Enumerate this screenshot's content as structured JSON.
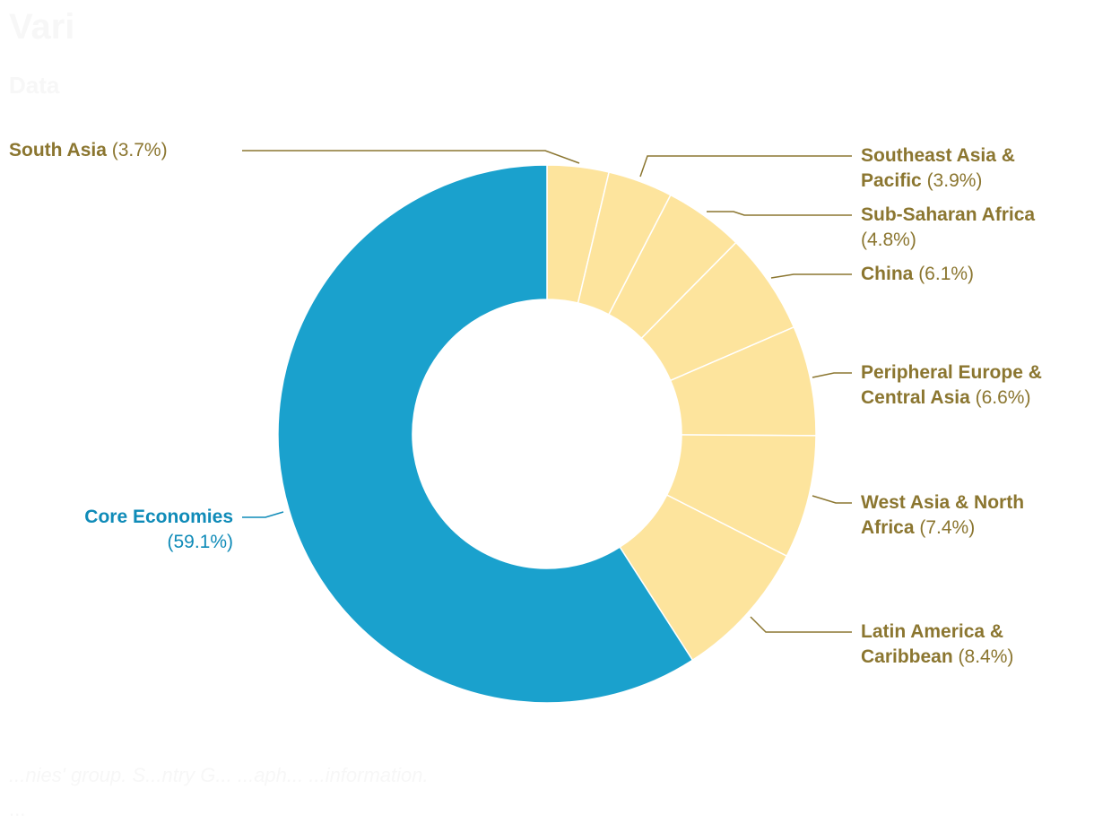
{
  "ghost": {
    "title": "Vari",
    "subtitle": "Data",
    "note1": "...nies' group. S...ntry G... ...aph... ...information.",
    "note2": "..."
  },
  "colors": {
    "core": "#1aa1cd",
    "other": "#fde49d",
    "core_label": "#0f8bb8",
    "other_label": "#8b7630",
    "separator": "#ffffff"
  },
  "chart_data": {
    "type": "pie",
    "donut": true,
    "title": "",
    "slices": [
      {
        "name": "South Asia",
        "value": 3.7,
        "pct_label": "(3.7%)",
        "group": "other"
      },
      {
        "name": "Southeast Asia & Pacific",
        "value": 3.9,
        "pct_label": "(3.9%)",
        "group": "other"
      },
      {
        "name": "Sub-Saharan Africa",
        "value": 4.8,
        "pct_label": "(4.8%)",
        "group": "other"
      },
      {
        "name": "China",
        "value": 6.1,
        "pct_label": "(6.1%)",
        "group": "other"
      },
      {
        "name": "Peripheral Europe & Central Asia",
        "value": 6.6,
        "pct_label": "(6.6%)",
        "group": "other"
      },
      {
        "name": "West Asia & North Africa",
        "value": 7.4,
        "pct_label": "(7.4%)",
        "group": "other"
      },
      {
        "name": "Latin America & Caribbean",
        "value": 8.4,
        "pct_label": "(8.4%)",
        "group": "other"
      },
      {
        "name": "Core Economies",
        "value": 59.1,
        "pct_label": "(59.1%)",
        "group": "core"
      }
    ]
  }
}
